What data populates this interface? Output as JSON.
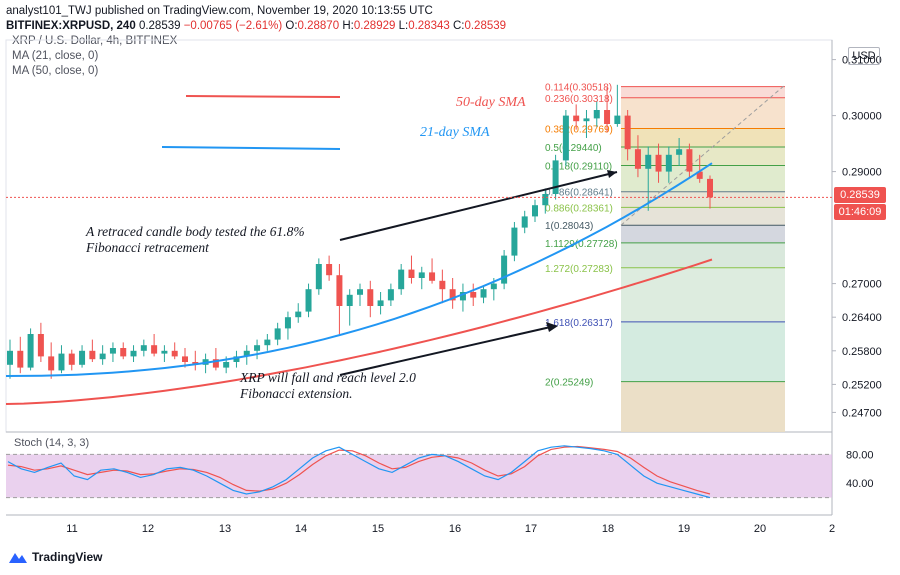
{
  "header": {
    "line1": "analyst101_TWJ published on TradingView.com, November 19, 2020 10:13:55 UTC",
    "symbol": "BITFINEX:XRPUSD, 240",
    "last": "0.28539",
    "change": "−0.00765 (−2.61%)",
    "o_label": "O:",
    "o": "0.28870",
    "h_label": "H:",
    "h": "0.28929",
    "l_label": "L:",
    "l": "0.28343",
    "c_label": "C:",
    "c": "0.28539"
  },
  "indicators": {
    "title": "XRP / U.S. Dollar, 4h, BITFINEX",
    "ma21": "MA (21, close, 0)",
    "ma50": "MA (50, close, 0)"
  },
  "price_tags": {
    "current": "0.28539",
    "countdown": "01:46:09",
    "currency": "USD"
  },
  "stoch_label": "Stoch (14, 3, 3)",
  "footer": {
    "brand": "TradingView"
  },
  "annotations": {
    "sma50": "50-day SMA",
    "sma21": "21-day SMA",
    "note1_line1": "A retraced candle body tested the 61.8%",
    "note1_line2": "Fibonacci retracement",
    "note2_line1": "XRP will fall and reach level 2.0",
    "note2_line2": "Fibonacci extension."
  },
  "colors": {
    "up": "#26a69a",
    "down": "#ef5350",
    "ma21": "#2196f3",
    "ma50": "#ef5350",
    "stochK": "#2196f3",
    "stochD": "#ef5350",
    "stochBand": "#e1bee7"
  },
  "chart_data": {
    "type": "candlestick",
    "price_axis": {
      "ticks": [
        0.31,
        0.3,
        0.29,
        0.27,
        0.264,
        0.258,
        0.252,
        0.247
      ],
      "tick_labels": [
        "0.31000",
        "0.30000",
        "0.29000",
        "0.27000",
        "0.26400",
        "0.25800",
        "0.25200",
        "0.24700"
      ],
      "range": [
        0.2435,
        0.3135
      ]
    },
    "x_ticks": [
      "11",
      "12",
      "13",
      "14",
      "15",
      "16",
      "17",
      "18",
      "19",
      "20",
      "2"
    ],
    "fibonacci": [
      {
        "label": "0.114(0.30518)",
        "price": 0.30518
      },
      {
        "label": "0.236(0.30318)",
        "price": 0.30318
      },
      {
        "label": "0.382(0.29769)",
        "price": 0.29769
      },
      {
        "label": "0.5(0.29440)",
        "price": 0.2944
      },
      {
        "label": "0.618(0.29110)",
        "price": 0.2911
      },
      {
        "label": "0.786(0.28641)",
        "price": 0.28641
      },
      {
        "label": "0.886(0.28361)",
        "price": 0.28361
      },
      {
        "label": "1(0.28043)",
        "price": 0.28043
      },
      {
        "label": "1.1129(0.27728)",
        "price": 0.27728
      },
      {
        "label": "1.272(0.27283)",
        "price": 0.27283
      },
      {
        "label": "1.618(0.26317)",
        "price": 0.26317
      },
      {
        "label": "2(0.25249)",
        "price": 0.25249
      }
    ],
    "candles": [
      [
        0.2555,
        0.26,
        0.253,
        0.258
      ],
      [
        0.258,
        0.2605,
        0.254,
        0.255
      ],
      [
        0.255,
        0.262,
        0.2545,
        0.261
      ],
      [
        0.261,
        0.263,
        0.256,
        0.257
      ],
      [
        0.257,
        0.2595,
        0.253,
        0.2545
      ],
      [
        0.2545,
        0.259,
        0.254,
        0.2575
      ],
      [
        0.2575,
        0.2582,
        0.2545,
        0.2555
      ],
      [
        0.2555,
        0.259,
        0.255,
        0.258
      ],
      [
        0.258,
        0.26,
        0.256,
        0.2565
      ],
      [
        0.2565,
        0.259,
        0.2555,
        0.2575
      ],
      [
        0.2575,
        0.2595,
        0.256,
        0.2585
      ],
      [
        0.2585,
        0.2595,
        0.2565,
        0.257
      ],
      [
        0.257,
        0.259,
        0.256,
        0.258
      ],
      [
        0.258,
        0.26,
        0.257,
        0.259
      ],
      [
        0.259,
        0.261,
        0.257,
        0.2575
      ],
      [
        0.2575,
        0.259,
        0.256,
        0.258
      ],
      [
        0.258,
        0.2595,
        0.2565,
        0.257
      ],
      [
        0.257,
        0.2585,
        0.255,
        0.256
      ],
      [
        0.256,
        0.258,
        0.2545,
        0.2555
      ],
      [
        0.2555,
        0.2575,
        0.254,
        0.2565
      ],
      [
        0.2565,
        0.2585,
        0.2545,
        0.255
      ],
      [
        0.255,
        0.257,
        0.254,
        0.256
      ],
      [
        0.256,
        0.258,
        0.255,
        0.257
      ],
      [
        0.257,
        0.259,
        0.2555,
        0.258
      ],
      [
        0.258,
        0.26,
        0.2565,
        0.259
      ],
      [
        0.259,
        0.261,
        0.258,
        0.26
      ],
      [
        0.26,
        0.263,
        0.259,
        0.262
      ],
      [
        0.262,
        0.265,
        0.26,
        0.264
      ],
      [
        0.264,
        0.2665,
        0.263,
        0.265
      ],
      [
        0.265,
        0.27,
        0.264,
        0.269
      ],
      [
        0.269,
        0.2745,
        0.268,
        0.2735
      ],
      [
        0.2735,
        0.275,
        0.2705,
        0.2715
      ],
      [
        0.2715,
        0.2735,
        0.261,
        0.266
      ],
      [
        0.266,
        0.269,
        0.2625,
        0.268
      ],
      [
        0.268,
        0.27,
        0.266,
        0.269
      ],
      [
        0.269,
        0.2705,
        0.264,
        0.266
      ],
      [
        0.266,
        0.2685,
        0.2645,
        0.267
      ],
      [
        0.267,
        0.27,
        0.266,
        0.269
      ],
      [
        0.269,
        0.2735,
        0.268,
        0.2725
      ],
      [
        0.2725,
        0.275,
        0.27,
        0.271
      ],
      [
        0.271,
        0.273,
        0.269,
        0.272
      ],
      [
        0.272,
        0.2745,
        0.27,
        0.2705
      ],
      [
        0.2705,
        0.2725,
        0.2665,
        0.269
      ],
      [
        0.269,
        0.271,
        0.2655,
        0.267
      ],
      [
        0.267,
        0.27,
        0.265,
        0.2685
      ],
      [
        0.2685,
        0.27,
        0.266,
        0.2675
      ],
      [
        0.2675,
        0.2695,
        0.2665,
        0.269
      ],
      [
        0.269,
        0.271,
        0.267,
        0.27
      ],
      [
        0.27,
        0.276,
        0.269,
        0.275
      ],
      [
        0.275,
        0.281,
        0.274,
        0.28
      ],
      [
        0.28,
        0.283,
        0.279,
        0.282
      ],
      [
        0.282,
        0.285,
        0.281,
        0.284
      ],
      [
        0.284,
        0.287,
        0.2825,
        0.286
      ],
      [
        0.286,
        0.293,
        0.285,
        0.292
      ],
      [
        0.292,
        0.301,
        0.291,
        0.3
      ],
      [
        0.3,
        0.302,
        0.2975,
        0.299
      ],
      [
        0.299,
        0.301,
        0.296,
        0.2995
      ],
      [
        0.2995,
        0.3025,
        0.298,
        0.301
      ],
      [
        0.301,
        0.305,
        0.297,
        0.2985
      ],
      [
        0.2985,
        0.3055,
        0.298,
        0.3
      ],
      [
        0.3,
        0.301,
        0.292,
        0.294
      ],
      [
        0.294,
        0.2965,
        0.289,
        0.2905
      ],
      [
        0.2905,
        0.2945,
        0.283,
        0.293
      ],
      [
        0.293,
        0.295,
        0.288,
        0.29
      ],
      [
        0.29,
        0.2945,
        0.288,
        0.293
      ],
      [
        0.293,
        0.296,
        0.291,
        0.294
      ],
      [
        0.294,
        0.295,
        0.289,
        0.29
      ],
      [
        0.29,
        0.293,
        0.288,
        0.2887
      ],
      [
        0.2887,
        0.2893,
        0.2834,
        0.2854
      ]
    ],
    "ma21_range": [
      0.2535,
      0.2915
    ],
    "ma50_range": [
      0.2485,
      0.2743
    ],
    "stoch": {
      "axis_labels": [
        "80.00",
        "40.00"
      ],
      "band": [
        20,
        80
      ],
      "k": [
        70,
        60,
        55,
        62,
        68,
        50,
        45,
        58,
        60,
        55,
        48,
        52,
        60,
        62,
        58,
        50,
        40,
        30,
        25,
        28,
        35,
        45,
        60,
        75,
        85,
        90,
        80,
        70,
        60,
        55,
        65,
        75,
        80,
        78,
        70,
        60,
        50,
        45,
        55,
        70,
        85,
        90,
        92,
        90,
        88,
        85,
        80,
        65,
        50,
        40,
        35,
        30,
        25,
        20
      ],
      "d": [
        65,
        63,
        58,
        60,
        64,
        58,
        52,
        55,
        58,
        57,
        52,
        53,
        57,
        60,
        59,
        55,
        48,
        38,
        30,
        29,
        32,
        40,
        52,
        66,
        78,
        86,
        85,
        78,
        68,
        60,
        62,
        70,
        76,
        78,
        75,
        68,
        58,
        50,
        53,
        63,
        78,
        87,
        90,
        91,
        89,
        87,
        84,
        75,
        62,
        50,
        42,
        36,
        30,
        25
      ]
    }
  }
}
